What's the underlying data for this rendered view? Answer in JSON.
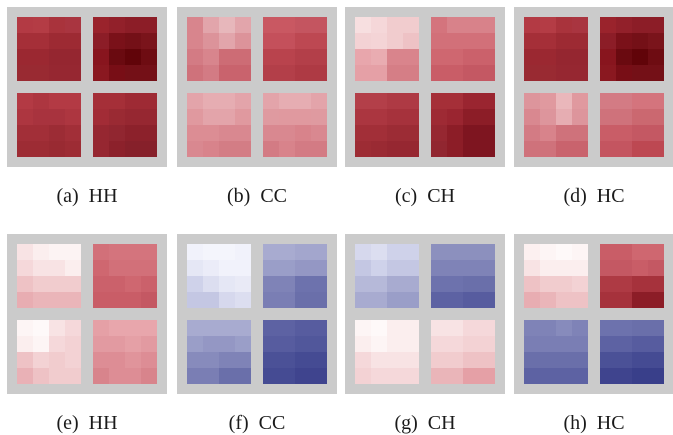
{
  "figure": {
    "panels": [
      {
        "caption": "(a)  HH",
        "quadrants": [
          [
            [
              "#b33a44",
              "#b43c45",
              "#a9333c",
              "#a93540"
            ],
            [
              "#a52f38",
              "#a52f38",
              "#9d2a33",
              "#9d2a33"
            ],
            [
              "#9b2831",
              "#9b2831",
              "#952630",
              "#952630"
            ],
            [
              "#992a32",
              "#992a32",
              "#962731",
              "#962731"
            ]
          ],
          [
            [
              "#9a232c",
              "#92202a",
              "#8c1d27",
              "#8c1d27"
            ],
            [
              "#8c1d27",
              "#7a1119",
              "#741017",
              "#7a141b"
            ],
            [
              "#88151e",
              "#6a0a10",
              "#610409",
              "#6e0c12"
            ],
            [
              "#8a1820",
              "#780e16",
              "#741017",
              "#741017"
            ]
          ],
          [
            [
              "#b33a44",
              "#ad3640",
              "#b33a44",
              "#b33a44"
            ],
            [
              "#ad3640",
              "#a8333e",
              "#a8333e",
              "#ad3640"
            ],
            [
              "#a22f38",
              "#a22f38",
              "#9c2c35",
              "#a22f38"
            ],
            [
              "#9d2c34",
              "#9d2c34",
              "#992a32",
              "#9d2c34"
            ]
          ],
          [
            [
              "#a52f38",
              "#a52f38",
              "#9e2a34",
              "#9e2a34"
            ],
            [
              "#a22c36",
              "#9a2a33",
              "#962731",
              "#962731"
            ],
            [
              "#962731",
              "#912630",
              "#8c212b",
              "#8c212b"
            ],
            [
              "#962731",
              "#8c212b",
              "#86202a",
              "#86202a"
            ]
          ]
        ]
      },
      {
        "caption": "(b)  CC",
        "quadrants": [
          [
            [
              "#d8858d",
              "#e2a5ab",
              "#e7b7bb",
              "#e2a5ab"
            ],
            [
              "#d8858d",
              "#dc939a",
              "#e2a5ab",
              "#dc939a"
            ],
            [
              "#d37b84",
              "#d8858d",
              "#cd6c75",
              "#cd6c75"
            ],
            [
              "#cf727b",
              "#d37b84",
              "#c9636d",
              "#c9636d"
            ]
          ],
          [
            [
              "#c95862",
              "#c95862",
              "#c45560",
              "#c45560"
            ],
            [
              "#c4505b",
              "#c4505b",
              "#bd4852",
              "#bd4852"
            ],
            [
              "#b9434d",
              "#b9434d",
              "#b33f49",
              "#b33f49"
            ],
            [
              "#b33f49",
              "#b33f49",
              "#ae3a44",
              "#ae3a44"
            ]
          ],
          [
            [
              "#e3a4aa",
              "#e6adb2",
              "#e6adb2",
              "#e3a4aa"
            ],
            [
              "#e0999f",
              "#e3a4aa",
              "#e3a4aa",
              "#e0999f"
            ],
            [
              "#dc8d94",
              "#dc8d94",
              "#d98890",
              "#d98890"
            ],
            [
              "#d98890",
              "#d8838b",
              "#d37d85",
              "#d37d85"
            ]
          ],
          [
            [
              "#e3a4aa",
              "#e6adb2",
              "#e6adb2",
              "#e3a4aa"
            ],
            [
              "#df9aa0",
              "#e0999f",
              "#e0999f",
              "#df9aa0"
            ],
            [
              "#d98890",
              "#d98890",
              "#d8838b",
              "#d98890"
            ],
            [
              "#d37b84",
              "#d8838b",
              "#d37b84",
              "#d37b84"
            ]
          ]
        ]
      },
      {
        "caption": "(c)  CH",
        "quadrants": [
          [
            [
              "#f7dfe0",
              "#f5d7d9",
              "#f1ccce",
              "#f1ccce"
            ],
            [
              "#f3d2d4",
              "#f4d4d6",
              "#f1ccce",
              "#eec2c5"
            ],
            [
              "#e8a6ac",
              "#e9acb1",
              "#d9848c",
              "#d9848c"
            ],
            [
              "#e5a0a6",
              "#e5a0a6",
              "#d57e86",
              "#d57e86"
            ]
          ],
          [
            [
              "#d4747d",
              "#d8828a",
              "#d8828a",
              "#d8828a"
            ],
            [
              "#d27079",
              "#d27079",
              "#d27079",
              "#d27079"
            ],
            [
              "#cf6770",
              "#cf6770",
              "#cb616b",
              "#cb616b"
            ],
            [
              "#c95d67",
              "#c95d67",
              "#c45863",
              "#c45863"
            ]
          ],
          [
            [
              "#b33f49",
              "#b33f49",
              "#ae3a44",
              "#ae3a44"
            ],
            [
              "#ab3640",
              "#ab3640",
              "#a6323c",
              "#a6323c"
            ],
            [
              "#a22f38",
              "#a22f38",
              "#9c2c35",
              "#9c2c35"
            ],
            [
              "#9d2c34",
              "#9a2a33",
              "#962731",
              "#962731"
            ]
          ],
          [
            [
              "#a52f38",
              "#a52f38",
              "#9a2530",
              "#9a2530"
            ],
            [
              "#9e2a34",
              "#9a2530",
              "#8c1d27",
              "#8c1d27"
            ],
            [
              "#962731",
              "#8c1d27",
              "#7e1520",
              "#7e1520"
            ],
            [
              "#912630",
              "#8c1d27",
              "#7e1520",
              "#7e1520"
            ]
          ]
        ]
      },
      {
        "caption": "(d)  HC",
        "quadrants": [
          [
            [
              "#b33a44",
              "#b43c45",
              "#a9333c",
              "#a93540"
            ],
            [
              "#a52f38",
              "#a52f38",
              "#9d2a33",
              "#9d2a33"
            ],
            [
              "#9b2831",
              "#9b2831",
              "#952630",
              "#952630"
            ],
            [
              "#992a32",
              "#992a32",
              "#962731",
              "#962731"
            ]
          ],
          [
            [
              "#9a232c",
              "#92202a",
              "#8c1d27",
              "#8c1d27"
            ],
            [
              "#8c1d27",
              "#7a1119",
              "#741017",
              "#7a141b"
            ],
            [
              "#88151e",
              "#6a0a10",
              "#610409",
              "#6e0c12"
            ],
            [
              "#8a1820",
              "#780e16",
              "#741017",
              "#741017"
            ]
          ],
          [
            [
              "#dd959c",
              "#e0999f",
              "#eab7bb",
              "#e0999f"
            ],
            [
              "#d98890",
              "#dd959c",
              "#e6adb2",
              "#dd959c"
            ],
            [
              "#d37b84",
              "#d8838b",
              "#cf727b",
              "#cf727b"
            ],
            [
              "#cf727b",
              "#cf727b",
              "#c9636d",
              "#c9636d"
            ]
          ],
          [
            [
              "#d37b84",
              "#d37b84",
              "#d4747d",
              "#d4747d"
            ],
            [
              "#cf727b",
              "#cf727b",
              "#cb6870",
              "#cb6870"
            ],
            [
              "#c95d67",
              "#c95d67",
              "#c45863",
              "#c45863"
            ],
            [
              "#c45560",
              "#c45560",
              "#bd4852",
              "#bd4852"
            ]
          ]
        ]
      },
      {
        "caption": "(e)  HH",
        "quadrants": [
          [
            [
              "#f8e3e4",
              "#fbeeee",
              "#fcf3f3",
              "#fcf3f3"
            ],
            [
              "#f5d8da",
              "#f8e3e4",
              "#f8e3e4",
              "#fbeeee"
            ],
            [
              "#eec2c5",
              "#f1ccce",
              "#f1ccce",
              "#f1ccce"
            ],
            [
              "#e8adb2",
              "#eab5b9",
              "#eab5b9",
              "#eab5b9"
            ]
          ],
          [
            [
              "#d27079",
              "#d4747d",
              "#d4747d",
              "#d4747d"
            ],
            [
              "#cf6770",
              "#d27079",
              "#d27079",
              "#d27079"
            ],
            [
              "#cb616b",
              "#cb616b",
              "#cf6770",
              "#cb616b"
            ],
            [
              "#c95d67",
              "#c95d67",
              "#c95d67",
              "#c45863"
            ]
          ],
          [
            [
              "#fdf5f5",
              "#fef9f9",
              "#f8e3e4",
              "#f5d8da"
            ],
            [
              "#fbeeee",
              "#fdf5f5",
              "#f5d8da",
              "#f3d2d4"
            ],
            [
              "#eec2c5",
              "#f3d2d4",
              "#f1ccce",
              "#f3d2d4"
            ],
            [
              "#e9b1b6",
              "#eec2c5",
              "#f1ccce",
              "#f1ccce"
            ]
          ],
          [
            [
              "#e5a0a6",
              "#e8a6ac",
              "#e8a6ac",
              "#e8a6ac"
            ],
            [
              "#e29aa1",
              "#e29aa1",
              "#e5a0a6",
              "#e29aa1"
            ],
            [
              "#dd8d95",
              "#dd8d95",
              "#e0949b",
              "#dd8d95"
            ],
            [
              "#d8848c",
              "#dd8d95",
              "#dd8d95",
              "#d8848c"
            ]
          ]
        ]
      },
      {
        "caption": "(f)  CC",
        "quadrants": [
          [
            [
              "#f1f2fb",
              "#f4f5fc",
              "#f4f5fc",
              "#f1f2fb"
            ],
            [
              "#e5e7f5",
              "#ebecf8",
              "#f1f2fb",
              "#f1f2fb"
            ],
            [
              "#cfd2ea",
              "#dcdef0",
              "#e5e7f5",
              "#e9eaf6"
            ],
            [
              "#c4c7e3",
              "#c4c7e3",
              "#d6d8ed",
              "#dcdef0"
            ]
          ],
          [
            [
              "#a8abd0",
              "#a8abd0",
              "#a3a6cd",
              "#a3a6cd"
            ],
            [
              "#9a9ec8",
              "#9a9ec8",
              "#9497c4",
              "#9497c4"
            ],
            [
              "#7f83b7",
              "#7f83b7",
              "#6d72ad",
              "#6d72ad"
            ],
            [
              "#7a7eb4",
              "#7a7eb4",
              "#6a6faa",
              "#6a6faa"
            ]
          ],
          [
            [
              "#a8abd0",
              "#a8abd0",
              "#a8abd0",
              "#a8abd0"
            ],
            [
              "#9a9ec8",
              "#9497c4",
              "#9497c4",
              "#9a9ec8"
            ],
            [
              "#878bbc",
              "#878bbc",
              "#7f83b7",
              "#7f83b7"
            ],
            [
              "#7a7eb4",
              "#7a7eb4",
              "#6a6faa",
              "#6a6faa"
            ]
          ],
          [
            [
              "#5d62a3",
              "#5d62a3",
              "#575c9f",
              "#575c9f"
            ],
            [
              "#575c9f",
              "#575c9f",
              "#51579b",
              "#51579b"
            ],
            [
              "#4b5197",
              "#4b5197",
              "#454b93",
              "#454b93"
            ],
            [
              "#454b93",
              "#454b93",
              "#3f448e",
              "#3f448e"
            ]
          ]
        ]
      },
      {
        "caption": "(g)  CH",
        "quadrants": [
          [
            [
              "#d6d8ed",
              "#dcdef0",
              "#cfd2ea",
              "#cfd2ea"
            ],
            [
              "#c4c7e3",
              "#cfd2ea",
              "#c4c7e3",
              "#c4c7e3"
            ],
            [
              "#b6b9d9",
              "#b6b9d9",
              "#a8abd0",
              "#a8abd0"
            ],
            [
              "#a8abd0",
              "#a8abd0",
              "#9a9ec8",
              "#9a9ec8"
            ]
          ],
          [
            [
              "#8c90be",
              "#8c90be",
              "#8c90be",
              "#8c90be"
            ],
            [
              "#7f83b7",
              "#7f83b7",
              "#7f83b7",
              "#7f83b7"
            ],
            [
              "#6d72ad",
              "#6d72ad",
              "#6a6faa",
              "#6a6faa"
            ],
            [
              "#5d62a3",
              "#5d62a3",
              "#575c9f",
              "#575c9f"
            ]
          ],
          [
            [
              "#fdf5f5",
              "#fef9f9",
              "#fbeeee",
              "#fbeeee"
            ],
            [
              "#fbeeee",
              "#fdf5f5",
              "#fbeeee",
              "#fbeeee"
            ],
            [
              "#f5d8da",
              "#f8e3e4",
              "#f8e3e4",
              "#f8e3e4"
            ],
            [
              "#f3d2d4",
              "#f5d8da",
              "#f5d8da",
              "#f5d8da"
            ]
          ],
          [
            [
              "#f8e3e4",
              "#f8e3e4",
              "#f5d8da",
              "#f5d8da"
            ],
            [
              "#f5d8da",
              "#f5d8da",
              "#f3d2d4",
              "#f3d2d4"
            ],
            [
              "#f1ccce",
              "#f1ccce",
              "#eec2c5",
              "#eec2c5"
            ],
            [
              "#eab5b9",
              "#eab5b9",
              "#e5a0a6",
              "#e5a0a6"
            ]
          ]
        ]
      },
      {
        "caption": "(h)  HC",
        "quadrants": [
          [
            [
              "#fcf0f0",
              "#fdf5f5",
              "#fef9f9",
              "#fdf5f5"
            ],
            [
              "#f8e3e4",
              "#fbeeee",
              "#fbeeee",
              "#fbeeee"
            ],
            [
              "#eec2c5",
              "#f1ccce",
              "#f1ccce",
              "#f3d2d4"
            ],
            [
              "#e8adb2",
              "#eab5b9",
              "#eec2c5",
              "#eec2c5"
            ]
          ],
          [
            [
              "#c95d67",
              "#c95d67",
              "#cf6770",
              "#cf6770"
            ],
            [
              "#c45863",
              "#c45863",
              "#c95d67",
              "#c45863"
            ],
            [
              "#ae3a44",
              "#ae3a44",
              "#a6323c",
              "#a6323c"
            ],
            [
              "#a6323c",
              "#a6323c",
              "#8c1d27",
              "#8c1d27"
            ]
          ],
          [
            [
              "#7f83b7",
              "#7f83b7",
              "#878bbc",
              "#7f83b7"
            ],
            [
              "#7a7eb4",
              "#7a7eb4",
              "#7a7eb4",
              "#7a7eb4"
            ],
            [
              "#6a6faa",
              "#6a6faa",
              "#6a6faa",
              "#6a6faa"
            ],
            [
              "#5d62a3",
              "#5d62a3",
              "#5d62a3",
              "#5d62a3"
            ]
          ],
          [
            [
              "#6d72ad",
              "#6d72ad",
              "#6a6faa",
              "#6a6faa"
            ],
            [
              "#5d62a3",
              "#5d62a3",
              "#575c9f",
              "#575c9f"
            ],
            [
              "#4b5197",
              "#4b5197",
              "#454b93",
              "#454b93"
            ],
            [
              "#3f448e",
              "#3f448e",
              "#393f8a",
              "#393f8a"
            ]
          ]
        ]
      }
    ]
  }
}
